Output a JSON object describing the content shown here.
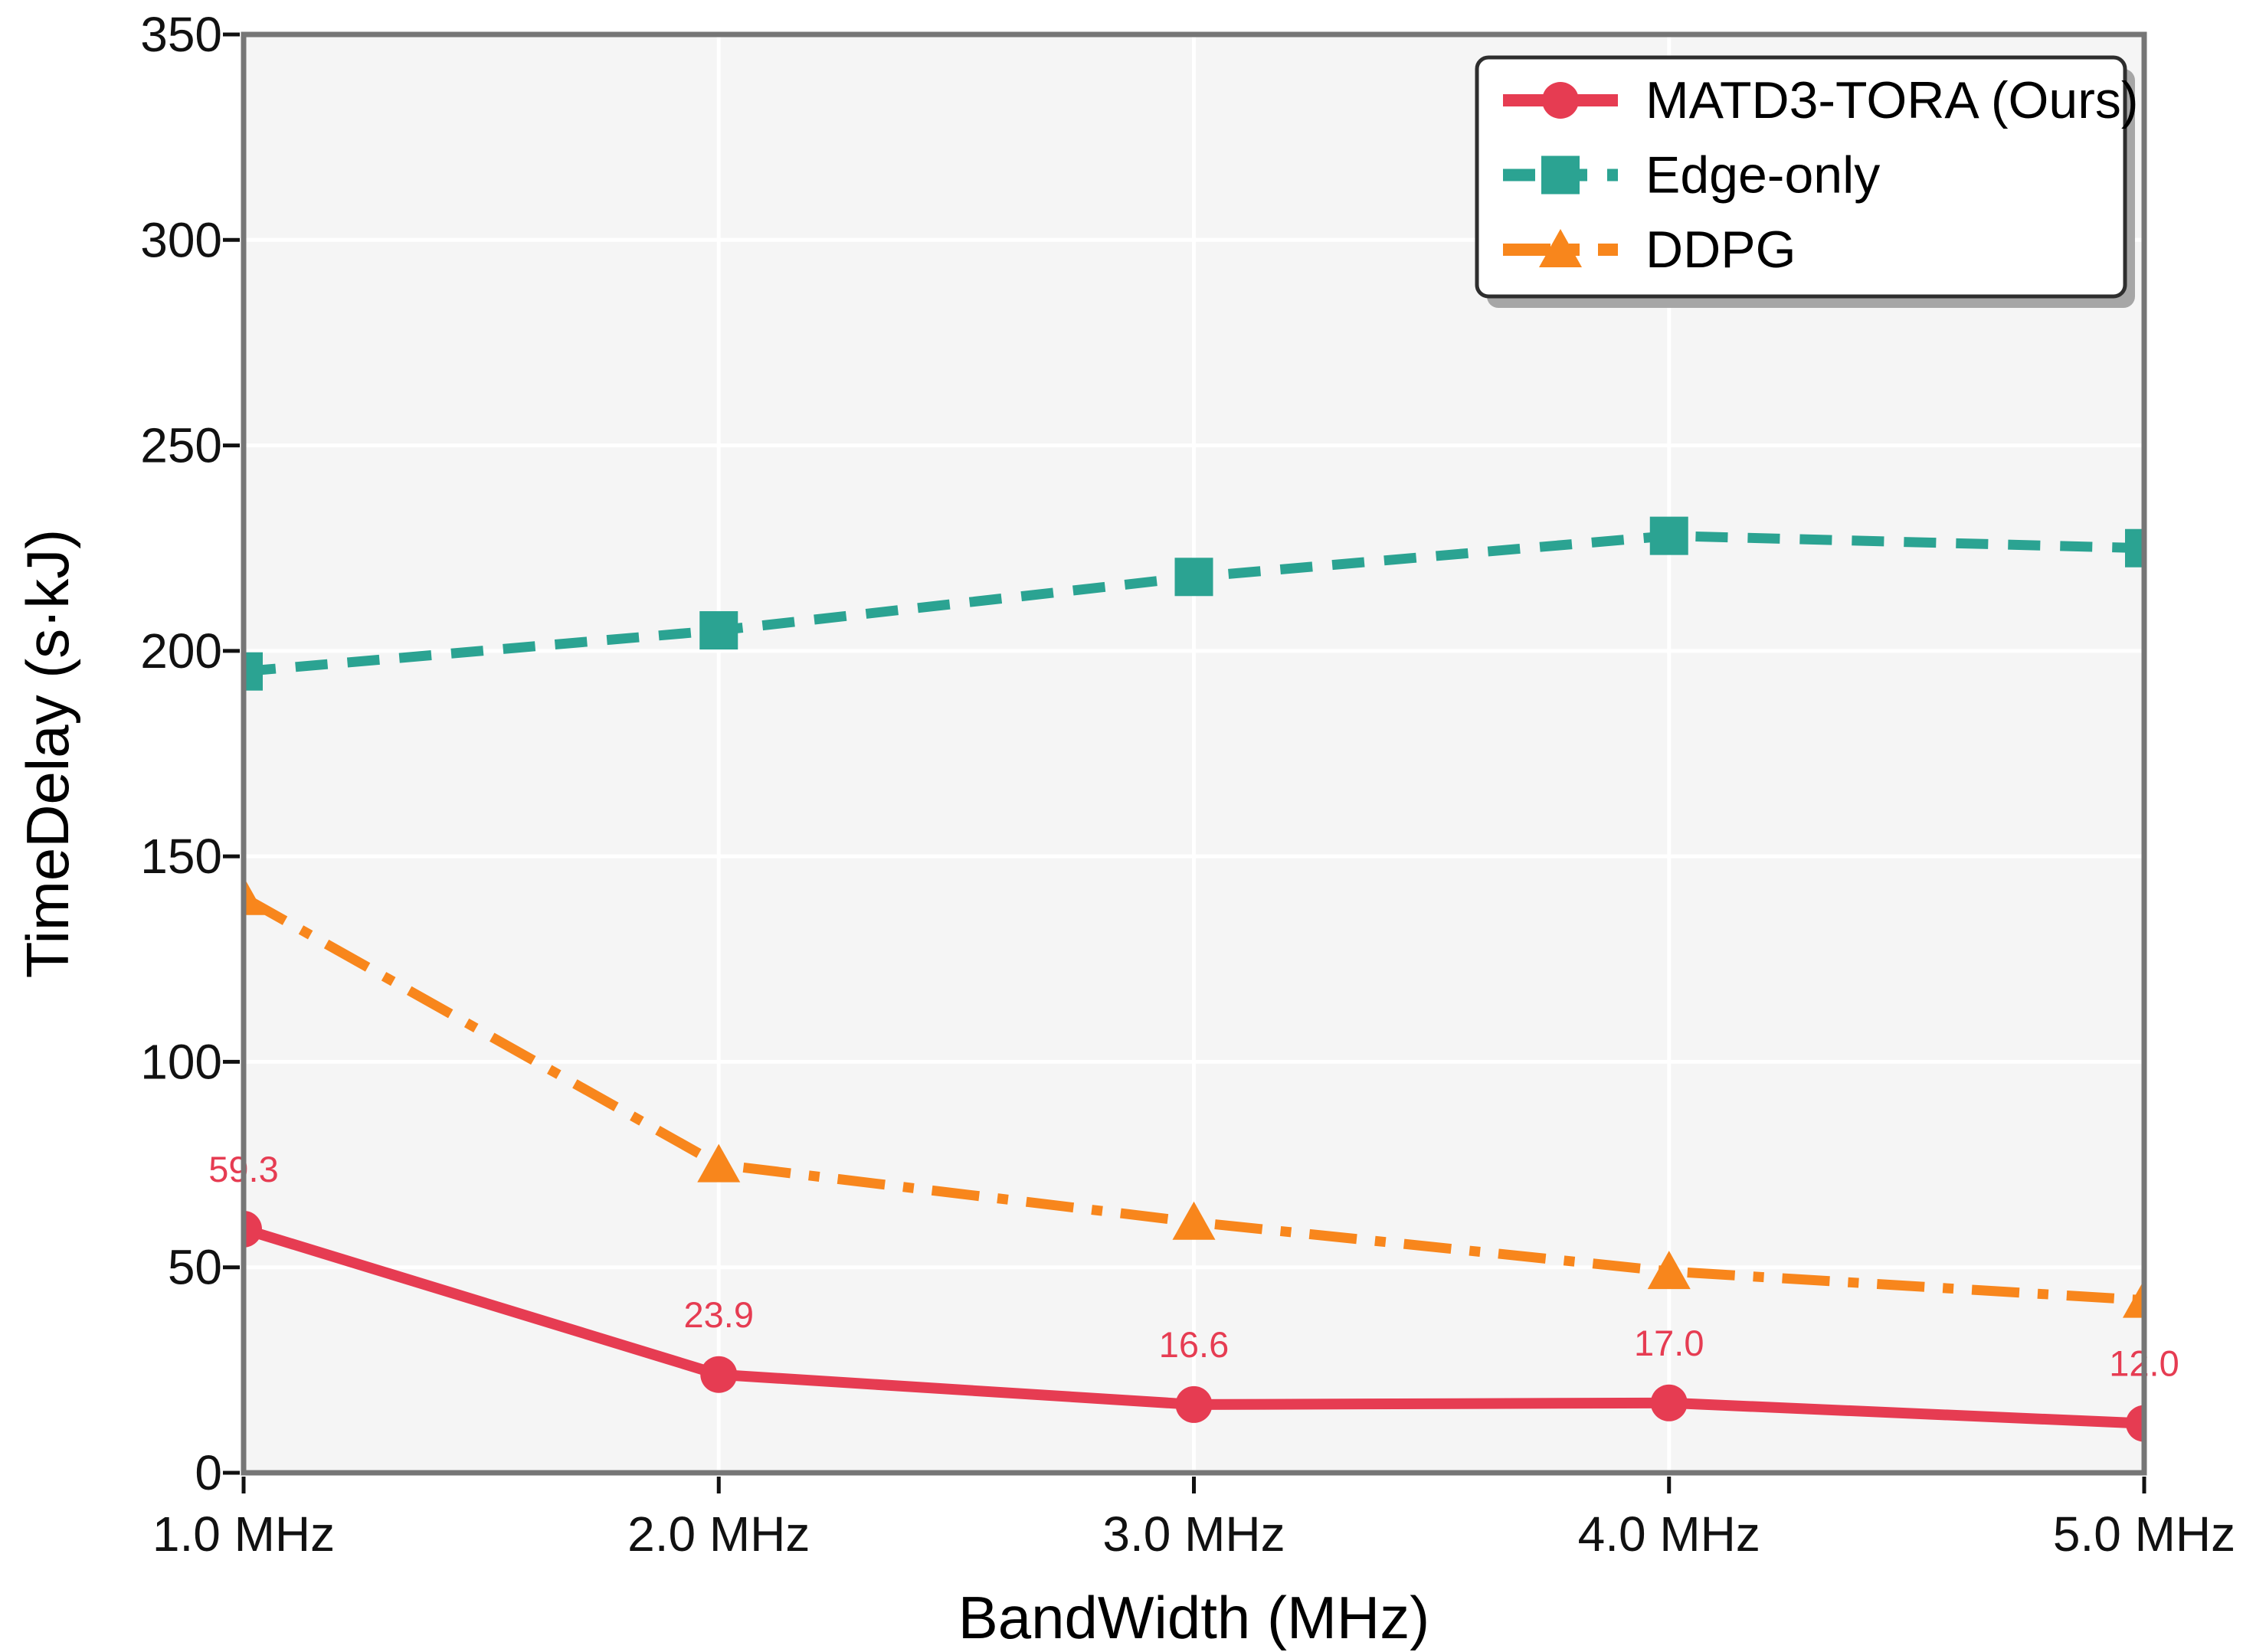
{
  "figure": {
    "background": "#ffffff"
  },
  "chart_data": {
    "type": "line",
    "xlabel": "BandWidth (MHz)",
    "ylabel": "TimeDelay (s·kJ)",
    "x": [
      1.0,
      2.0,
      3.0,
      4.0,
      5.0
    ],
    "x_tick_labels": [
      "1.0 MHz",
      "2.0 MHz",
      "3.0 MHz",
      "4.0 MHz",
      "5.0 MHz"
    ],
    "y_ticks": [
      0,
      50,
      100,
      150,
      200,
      250,
      300,
      350
    ],
    "ylim": [
      0,
      350
    ],
    "grid": true,
    "legend_position": "top-right",
    "colors": {
      "plot_background": "#f5f5f5",
      "grid_line": "#ffffff",
      "spine": "#767676",
      "tick_text": "#111111",
      "legend_border": "#2e2e2e",
      "legend_shadow": "#a6a6a6"
    },
    "series": [
      {
        "name": "MATD3-TORA (Ours)",
        "color": "#e63c52",
        "marker": "circle",
        "line_style": "solid",
        "values": [
          59.3,
          23.9,
          16.6,
          17.0,
          12.0
        ],
        "labels": [
          "59.3",
          "23.9",
          "16.6",
          "17.0",
          "12.0"
        ]
      },
      {
        "name": "Edge-only",
        "color": "#2ba392",
        "marker": "square",
        "line_style": "dashed",
        "values": [
          195,
          205,
          218,
          228,
          225
        ],
        "labels": []
      },
      {
        "name": "DDPG",
        "color": "#f8861c",
        "marker": "triangle",
        "line_style": "dashdot",
        "values": [
          140,
          75,
          61,
          49,
          42
        ],
        "labels": []
      }
    ]
  }
}
